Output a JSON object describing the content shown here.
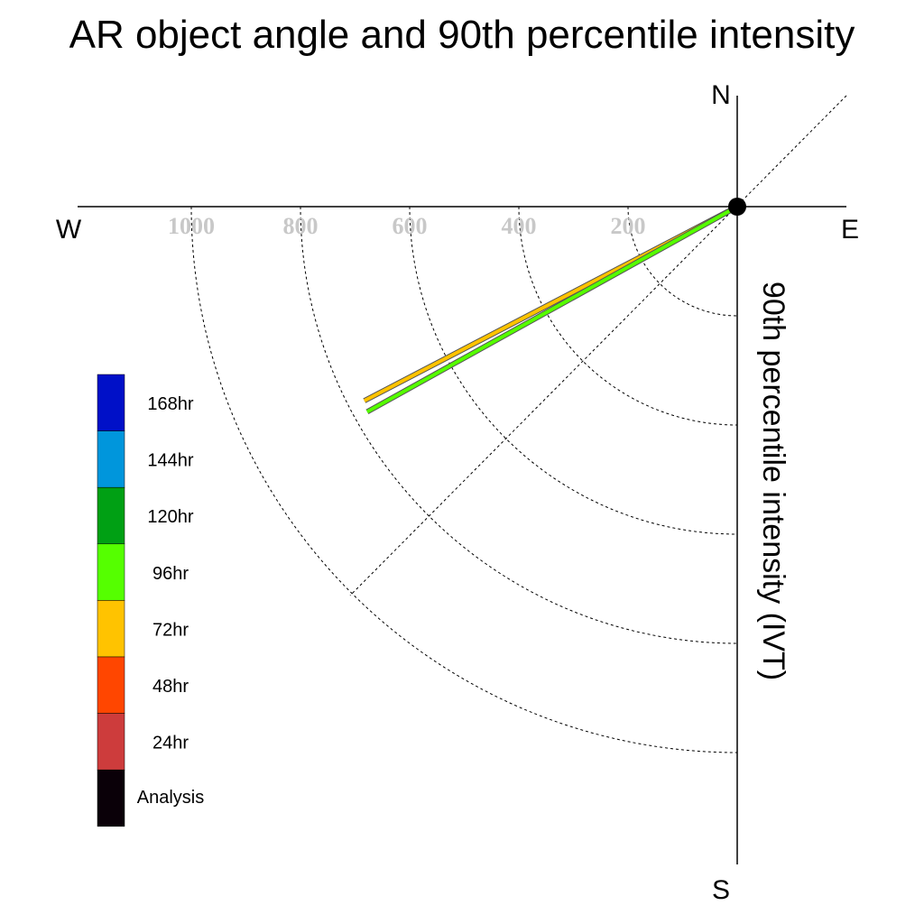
{
  "chart_data": {
    "type": "polar-quadrant",
    "title": "AR object angle and 90th percentile intensity",
    "compass": {
      "north": "N",
      "south": "S",
      "east": "E",
      "west": "W"
    },
    "radial_label": "90th percentile intensity (IVT)",
    "radial_ticks": [
      200,
      400,
      600,
      800,
      1000
    ],
    "radial_tick_labels": [
      "200",
      "400",
      "600",
      "800",
      "1000"
    ],
    "radial_range": [
      0,
      1000
    ],
    "series": [
      {
        "name": "72hr",
        "color": "#FFC300",
        "angle_deg_south_of_west": 27.5,
        "intensity": 770
      },
      {
        "name": "96hr",
        "color": "#55FF00",
        "angle_deg_south_of_west": 29.0,
        "intensity": 775
      }
    ],
    "legend": {
      "placement": "left",
      "entries": [
        {
          "label": "168hr",
          "color": "#0010C8"
        },
        {
          "label": "144hr",
          "color": "#0096DC"
        },
        {
          "label": "120hr",
          "color": "#00A014"
        },
        {
          "label": "96hr",
          "color": "#55FF00"
        },
        {
          "label": "72hr",
          "color": "#FFC300"
        },
        {
          "label": "48hr",
          "color": "#FF4600"
        },
        {
          "label": "24hr",
          "color": "#CD3C3C"
        },
        {
          "label": "Analysis",
          "color": "#0A0008"
        }
      ]
    }
  }
}
